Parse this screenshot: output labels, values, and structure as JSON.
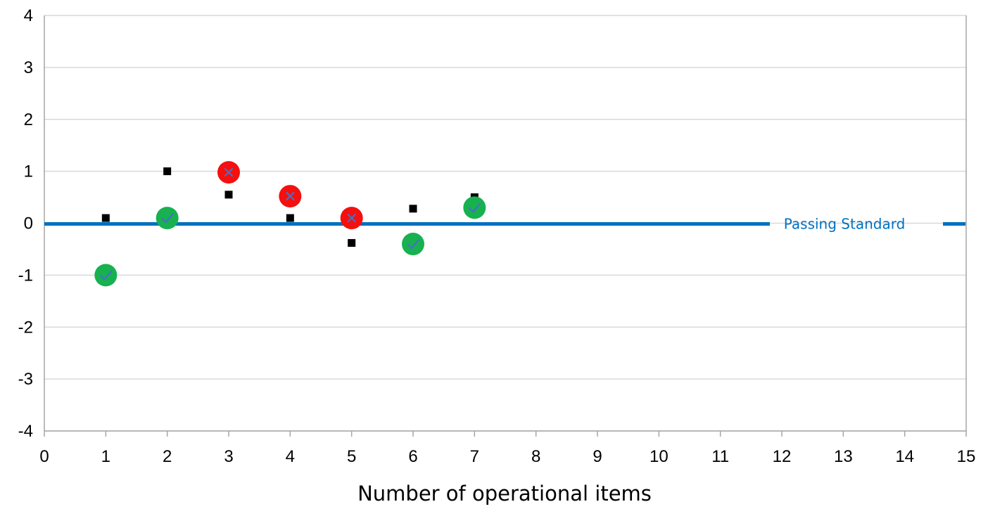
{
  "chart_data": {
    "type": "scatter",
    "title": "",
    "xlabel": "Number of operational items",
    "ylabel": "",
    "xlim": [
      0,
      15
    ],
    "ylim": [
      -4,
      4
    ],
    "x_ticks": [
      "0",
      "1",
      "2",
      "3",
      "4",
      "5",
      "6",
      "7",
      "8",
      "9",
      "10",
      "11",
      "12",
      "13",
      "14",
      "15"
    ],
    "y_ticks": [
      "4",
      "3",
      "2",
      "1",
      "0",
      "-1",
      "-2",
      "-3",
      "-4"
    ],
    "grid": "horizontal",
    "reference_line": {
      "label": "Passing Standard",
      "y": 0,
      "color": "#0070C0"
    },
    "series": [
      {
        "marker": "square",
        "color": "#000000",
        "points": [
          {
            "x": 1,
            "y": 0.1
          },
          {
            "x": 2,
            "y": 1.0
          },
          {
            "x": 3,
            "y": 0.55
          },
          {
            "x": 4,
            "y": 0.1
          },
          {
            "x": 5,
            "y": -0.38
          },
          {
            "x": 6,
            "y": 0.28
          },
          {
            "x": 7,
            "y": 0.5
          }
        ]
      },
      {
        "marker": "circle",
        "points": [
          {
            "x": 1,
            "y": -1.0,
            "status": "pass"
          },
          {
            "x": 2,
            "y": 0.1,
            "status": "pass"
          },
          {
            "x": 3,
            "y": 0.98,
            "status": "fail"
          },
          {
            "x": 4,
            "y": 0.52,
            "status": "fail"
          },
          {
            "x": 5,
            "y": 0.1,
            "status": "fail"
          },
          {
            "x": 6,
            "y": -0.4,
            "status": "pass"
          },
          {
            "x": 7,
            "y": 0.3,
            "status": "pass"
          }
        ]
      }
    ],
    "colors": {
      "pass": "#17B14F",
      "fail": "#F50F0F",
      "mark": "#4472C4",
      "grid": "#D9D9D9",
      "axis": "#A6A6A6"
    }
  }
}
